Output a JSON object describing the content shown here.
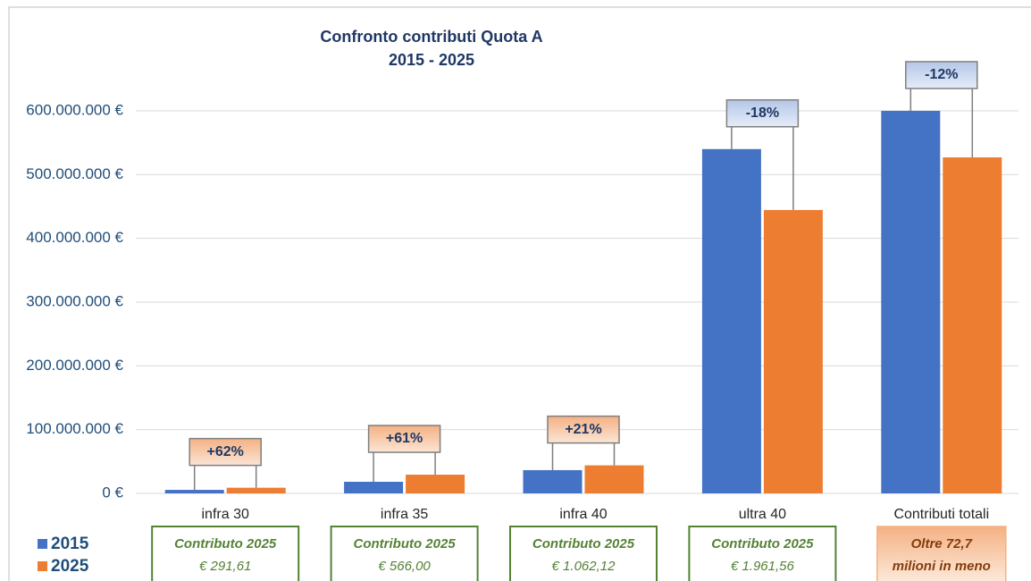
{
  "chart_data": {
    "type": "bar",
    "title": "Confronto contributi Quota A",
    "subtitle": "2015 - 2025",
    "categories": [
      "infra 30",
      "infra 35",
      "infra 40",
      "ultra 40",
      "Contributi totali"
    ],
    "series": [
      {
        "name": "2015",
        "color": "#4472c4",
        "values": [
          5500000,
          18200000,
          36500000,
          540000000,
          600000000
        ]
      },
      {
        "name": "2025",
        "color": "#ed7d31",
        "values": [
          8900000,
          29400000,
          44000000,
          444500000,
          527000000
        ]
      }
    ],
    "ylim": [
      0,
      600000000
    ],
    "yticks": [
      {
        "value": 0,
        "label": "0 €"
      },
      {
        "value": 100000000,
        "label": "100.000.000 €"
      },
      {
        "value": 200000000,
        "label": "200.000.000 €"
      },
      {
        "value": 300000000,
        "label": "300.000.000 €"
      },
      {
        "value": 400000000,
        "label": "400.000.000 €"
      },
      {
        "value": 500000000,
        "label": "500.000.000 €"
      },
      {
        "value": 600000000,
        "label": "600.000.000 €"
      }
    ],
    "grid": true,
    "legend": "bottom-left",
    "changes": [
      "+62%",
      "+61%",
      "+21%",
      "-18%",
      "-12%"
    ],
    "notes": [
      {
        "title": "Contributo 2025",
        "value": "€ 291,61"
      },
      {
        "title": "Contributo 2025",
        "value": "€ 566,00"
      },
      {
        "title": "Contributo 2025",
        "value": "€ 1.062,12"
      },
      {
        "title": "Contributo 2025",
        "value": "€ 1.961,56"
      },
      {
        "lines": [
          "Oltre 72,7",
          "milioni in meno"
        ]
      }
    ]
  }
}
